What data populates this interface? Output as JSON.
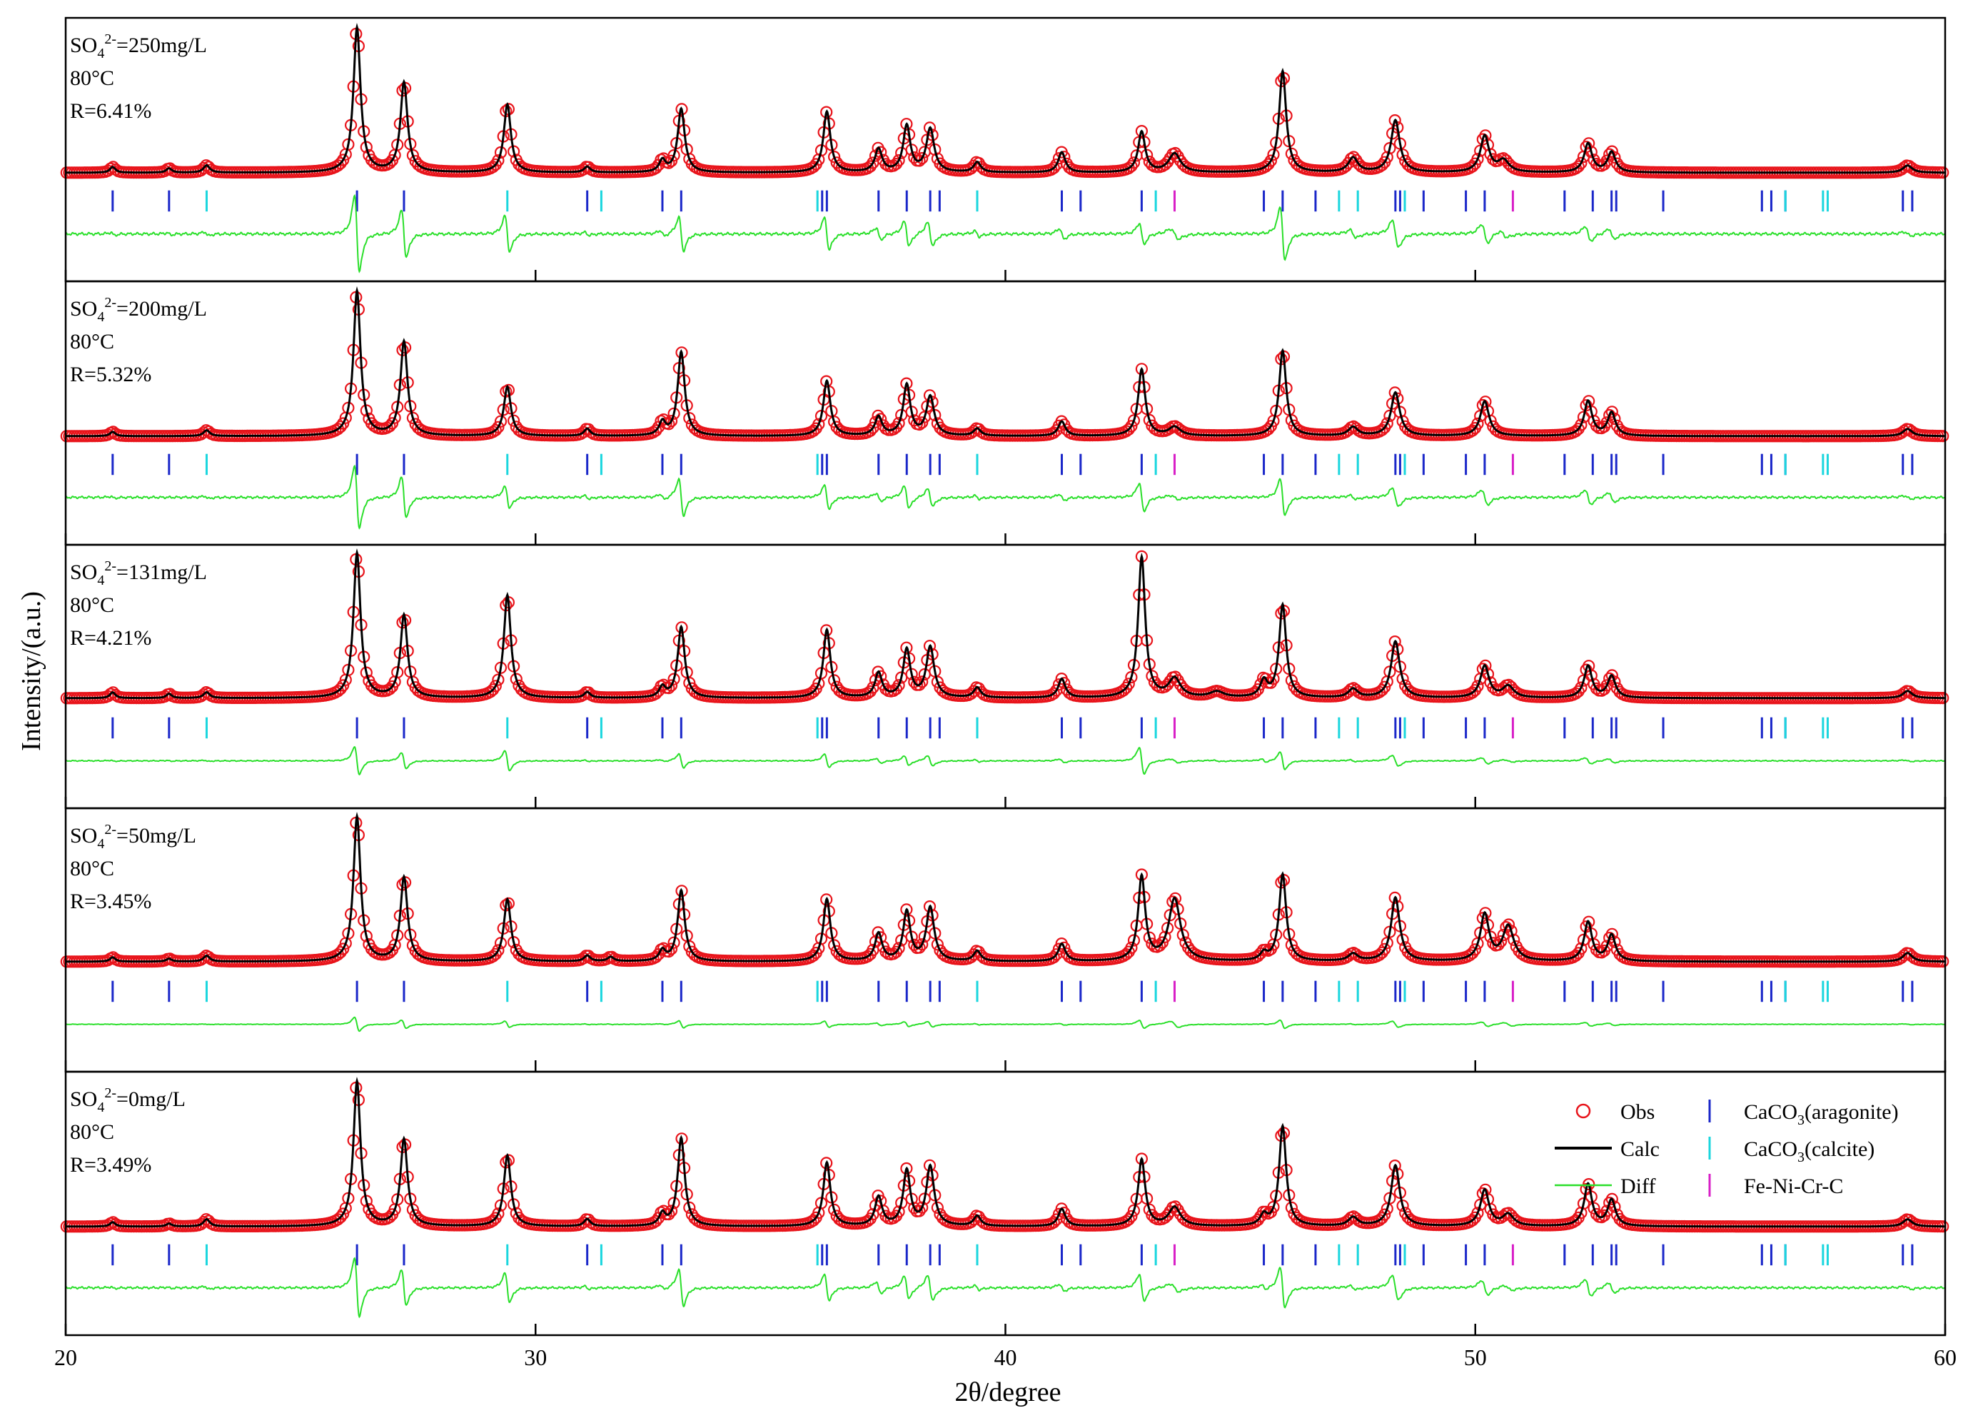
{
  "chart_data": {
    "type": "line",
    "xlabel": "2θ/degree",
    "ylabel": "Intensity/(a.u.)",
    "xlim": [
      20,
      60
    ],
    "x_ticks": [
      "20",
      "30",
      "40",
      "50",
      "60"
    ],
    "legend": {
      "placement": "bottom-panel top-right",
      "entries": [
        {
          "label": "Obs",
          "marker": "open-circle",
          "color": "#e8141b"
        },
        {
          "label": "Calc",
          "marker": "line",
          "color": "#000000"
        },
        {
          "label": "Diff",
          "marker": "line",
          "color": "#2adf2a"
        },
        {
          "label_main": "CaCO",
          "label_sub": "3",
          "label_rest": "(aragonite)",
          "marker": "tick",
          "color": "#1a27c9"
        },
        {
          "label_main": "CaCO",
          "label_sub": "3",
          "label_rest": "(calcite)",
          "marker": "tick",
          "color": "#1ad6de"
        },
        {
          "label": "Fe-Ni-Cr-C",
          "marker": "tick",
          "color": "#d81fc7"
        }
      ]
    },
    "colors": {
      "obs": "#e8141b",
      "calc": "#000000",
      "diff": "#2adf2a",
      "aragonite": "#1a27c9",
      "calcite": "#1ad6de",
      "fenicrc": "#d81fc7"
    },
    "reflections": {
      "aragonite": [
        21.0,
        22.2,
        26.2,
        27.2,
        31.1,
        32.7,
        33.1,
        36.1,
        36.2,
        37.3,
        37.9,
        38.4,
        38.6,
        41.2,
        41.6,
        42.9,
        45.5,
        45.9,
        46.6,
        48.3,
        48.4,
        48.9,
        49.8,
        50.2,
        51.9,
        52.5,
        52.9,
        53.0,
        54.0,
        56.1,
        56.3,
        56.6,
        59.1,
        59.3
      ],
      "calcite": [
        23.0,
        29.4,
        31.4,
        36.0,
        39.4,
        43.2,
        47.1,
        47.5,
        48.5,
        56.6,
        57.4,
        57.5
      ],
      "fenicrc": [
        43.6,
        50.8
      ]
    },
    "panels": [
      {
        "so4_label": "SO",
        "so4_sub": "4",
        "so4_sup": "2-",
        "so4_value": "=250mg/L",
        "temperature": "80°C",
        "r_label": "R=6.41%",
        "background": 0.04,
        "peaks": [
          [
            21.0,
            0.04,
            0.07
          ],
          [
            22.2,
            0.03,
            0.07
          ],
          [
            23.0,
            0.05,
            0.08
          ],
          [
            26.2,
            1.0,
            0.09
          ],
          [
            27.2,
            0.62,
            0.09
          ],
          [
            29.4,
            0.47,
            0.09
          ],
          [
            31.1,
            0.04,
            0.08
          ],
          [
            32.7,
            0.08,
            0.08
          ],
          [
            33.1,
            0.44,
            0.09
          ],
          [
            36.2,
            0.42,
            0.09
          ],
          [
            37.3,
            0.16,
            0.09
          ],
          [
            37.9,
            0.32,
            0.09
          ],
          [
            38.4,
            0.3,
            0.1
          ],
          [
            39.4,
            0.07,
            0.09
          ],
          [
            41.2,
            0.14,
            0.09
          ],
          [
            42.9,
            0.28,
            0.09
          ],
          [
            43.6,
            0.13,
            0.15
          ],
          [
            45.9,
            0.7,
            0.09
          ],
          [
            47.4,
            0.1,
            0.12
          ],
          [
            48.3,
            0.36,
            0.11
          ],
          [
            50.2,
            0.25,
            0.11
          ],
          [
            50.6,
            0.08,
            0.14
          ],
          [
            52.4,
            0.2,
            0.1
          ],
          [
            52.9,
            0.14,
            0.1
          ],
          [
            59.2,
            0.05,
            0.12
          ]
        ],
        "diff_amp": 0.22
      },
      {
        "so4_label": "SO",
        "so4_sub": "4",
        "so4_sup": "2-",
        "so4_value": "=200mg/L",
        "temperature": "80°C",
        "r_label": "R=5.32%",
        "background": 0.04,
        "peaks": [
          [
            21.0,
            0.03,
            0.07
          ],
          [
            23.0,
            0.04,
            0.08
          ],
          [
            26.2,
            1.0,
            0.09
          ],
          [
            27.2,
            0.65,
            0.09
          ],
          [
            29.4,
            0.34,
            0.09
          ],
          [
            31.1,
            0.05,
            0.08
          ],
          [
            32.7,
            0.09,
            0.08
          ],
          [
            33.1,
            0.58,
            0.09
          ],
          [
            36.2,
            0.38,
            0.09
          ],
          [
            37.3,
            0.13,
            0.09
          ],
          [
            37.9,
            0.35,
            0.09
          ],
          [
            38.4,
            0.27,
            0.1
          ],
          [
            39.4,
            0.05,
            0.09
          ],
          [
            41.2,
            0.1,
            0.09
          ],
          [
            42.9,
            0.46,
            0.09
          ],
          [
            43.6,
            0.06,
            0.15
          ],
          [
            45.9,
            0.59,
            0.09
          ],
          [
            47.4,
            0.06,
            0.12
          ],
          [
            48.3,
            0.3,
            0.11
          ],
          [
            50.2,
            0.24,
            0.11
          ],
          [
            52.4,
            0.24,
            0.1
          ],
          [
            52.9,
            0.16,
            0.1
          ],
          [
            59.2,
            0.05,
            0.12
          ]
        ],
        "diff_amp": 0.18
      },
      {
        "so4_label": "SO",
        "so4_sub": "4",
        "so4_sup": "2-",
        "so4_value": "=131mg/L",
        "temperature": "80°C",
        "r_label": "R=4.21%",
        "background": 0.05,
        "peaks": [
          [
            21.0,
            0.04,
            0.07
          ],
          [
            22.2,
            0.03,
            0.07
          ],
          [
            23.0,
            0.04,
            0.08
          ],
          [
            26.2,
            1.0,
            0.09
          ],
          [
            27.2,
            0.57,
            0.09
          ],
          [
            29.4,
            0.71,
            0.09
          ],
          [
            31.1,
            0.04,
            0.08
          ],
          [
            32.7,
            0.07,
            0.08
          ],
          [
            33.1,
            0.49,
            0.09
          ],
          [
            36.2,
            0.47,
            0.09
          ],
          [
            37.3,
            0.17,
            0.09
          ],
          [
            37.9,
            0.33,
            0.09
          ],
          [
            38.4,
            0.35,
            0.1
          ],
          [
            39.4,
            0.07,
            0.09
          ],
          [
            41.2,
            0.13,
            0.09
          ],
          [
            42.9,
            0.97,
            0.09
          ],
          [
            43.6,
            0.13,
            0.15
          ],
          [
            44.5,
            0.04,
            0.18
          ],
          [
            45.5,
            0.11,
            0.09
          ],
          [
            45.9,
            0.64,
            0.09
          ],
          [
            47.4,
            0.06,
            0.12
          ],
          [
            48.3,
            0.39,
            0.11
          ],
          [
            50.2,
            0.22,
            0.11
          ],
          [
            50.7,
            0.08,
            0.14
          ],
          [
            52.4,
            0.22,
            0.1
          ],
          [
            52.9,
            0.15,
            0.1
          ],
          [
            59.2,
            0.05,
            0.12
          ]
        ],
        "diff_amp": 0.08
      },
      {
        "so4_label": "SO",
        "so4_sub": "4",
        "so4_sup": "2-",
        "so4_value": "=50mg/L",
        "temperature": "80°C",
        "r_label": "R=3.45%",
        "background": 0.05,
        "peaks": [
          [
            21.0,
            0.03,
            0.07
          ],
          [
            22.2,
            0.02,
            0.07
          ],
          [
            23.0,
            0.04,
            0.08
          ],
          [
            26.2,
            1.0,
            0.09
          ],
          [
            27.2,
            0.58,
            0.09
          ],
          [
            29.4,
            0.43,
            0.09
          ],
          [
            31.1,
            0.04,
            0.08
          ],
          [
            31.6,
            0.03,
            0.08
          ],
          [
            32.7,
            0.07,
            0.08
          ],
          [
            33.1,
            0.49,
            0.09
          ],
          [
            36.2,
            0.43,
            0.09
          ],
          [
            37.3,
            0.19,
            0.09
          ],
          [
            37.9,
            0.34,
            0.09
          ],
          [
            38.4,
            0.37,
            0.1
          ],
          [
            39.4,
            0.07,
            0.09
          ],
          [
            41.2,
            0.12,
            0.09
          ],
          [
            42.9,
            0.58,
            0.09
          ],
          [
            43.6,
            0.43,
            0.15
          ],
          [
            45.5,
            0.05,
            0.09
          ],
          [
            45.9,
            0.6,
            0.09
          ],
          [
            47.4,
            0.05,
            0.12
          ],
          [
            48.3,
            0.44,
            0.11
          ],
          [
            50.2,
            0.32,
            0.11
          ],
          [
            50.7,
            0.24,
            0.14
          ],
          [
            52.4,
            0.27,
            0.1
          ],
          [
            52.9,
            0.18,
            0.1
          ],
          [
            59.2,
            0.06,
            0.12
          ]
        ],
        "diff_amp": 0.04
      },
      {
        "so4_label": "SO",
        "so4_sub": "4",
        "so4_sup": "2-",
        "so4_value": "=0mg/L",
        "temperature": "80°C",
        "r_label": "R=3.49%",
        "background": 0.04,
        "peaks": [
          [
            21.0,
            0.03,
            0.07
          ],
          [
            22.2,
            0.02,
            0.07
          ],
          [
            23.0,
            0.05,
            0.08
          ],
          [
            26.2,
            1.0,
            0.09
          ],
          [
            27.2,
            0.6,
            0.09
          ],
          [
            29.4,
            0.49,
            0.09
          ],
          [
            31.1,
            0.05,
            0.08
          ],
          [
            32.7,
            0.08,
            0.08
          ],
          [
            33.1,
            0.61,
            0.09
          ],
          [
            36.2,
            0.44,
            0.09
          ],
          [
            37.3,
            0.2,
            0.09
          ],
          [
            37.9,
            0.38,
            0.09
          ],
          [
            38.4,
            0.41,
            0.1
          ],
          [
            39.4,
            0.07,
            0.09
          ],
          [
            41.2,
            0.12,
            0.09
          ],
          [
            42.9,
            0.46,
            0.09
          ],
          [
            43.6,
            0.13,
            0.15
          ],
          [
            45.5,
            0.07,
            0.09
          ],
          [
            45.9,
            0.69,
            0.09
          ],
          [
            47.4,
            0.06,
            0.12
          ],
          [
            48.3,
            0.42,
            0.11
          ],
          [
            50.2,
            0.25,
            0.11
          ],
          [
            50.7,
            0.08,
            0.14
          ],
          [
            52.4,
            0.29,
            0.1
          ],
          [
            52.9,
            0.18,
            0.1
          ],
          [
            59.2,
            0.05,
            0.12
          ]
        ],
        "diff_amp": 0.17
      }
    ]
  }
}
